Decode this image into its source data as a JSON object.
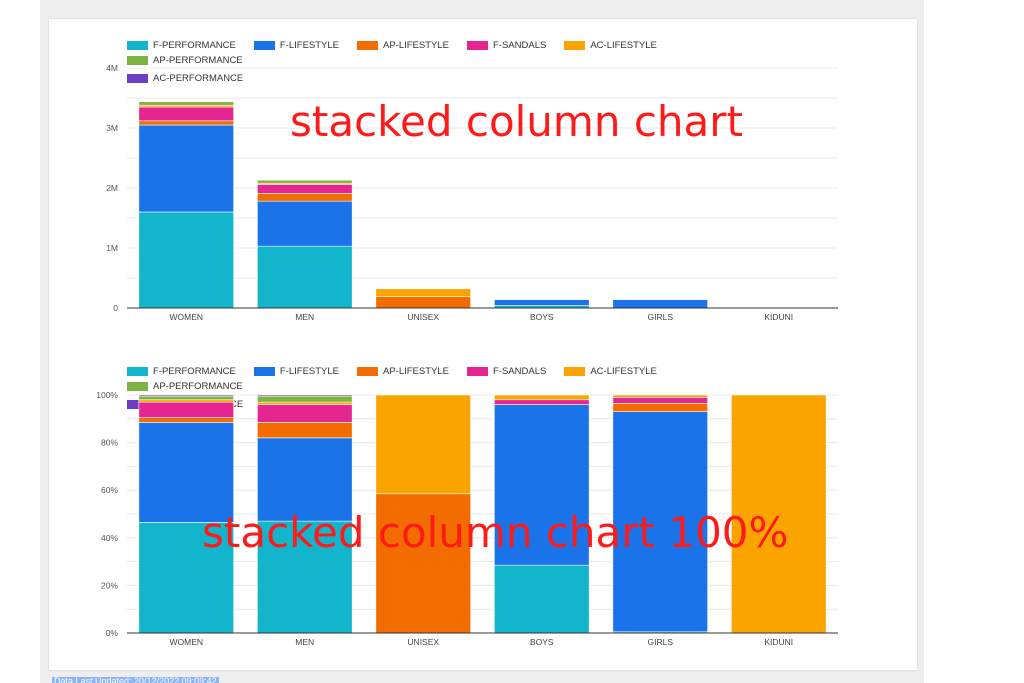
{
  "colors": {
    "F-PERFORMANCE": "#12b5cb",
    "F-LIFESTYLE": "#1a73e8",
    "AP-LIFESTYLE": "#f36c00",
    "F-SANDALS": "#e52592",
    "AC-LIFESTYLE": "#fba400",
    "AP-PERFORMANCE": "#7cb342",
    "AC-PERFORMANCE": "#6a3fc6"
  },
  "legend_labels": [
    "F-PERFORMANCE",
    "F-LIFESTYLE",
    "AP-LIFESTYLE",
    "F-SANDALS",
    "AC-LIFESTYLE",
    "AP-PERFORMANCE",
    "AC-PERFORMANCE"
  ],
  "annotations": {
    "top": "stacked column chart",
    "bottom": "stacked column chart 100%"
  },
  "status_text": "Data Last Updated: 20/12/2022 09:09:42",
  "chart_data": [
    {
      "type": "bar",
      "stacked": true,
      "categories": [
        "WOMEN",
        "MEN",
        "UNISEX",
        "BOYS",
        "GIRLS",
        "KIDUNI"
      ],
      "ylim": [
        0,
        4000000
      ],
      "yticks": [
        0,
        1000000,
        2000000,
        3000000,
        4000000
      ],
      "ytick_labels": [
        "0",
        "1M",
        "2M",
        "3M",
        "4M"
      ],
      "grid": true,
      "legend": "top",
      "series": [
        {
          "name": "F-PERFORMANCE",
          "values": [
            1600000,
            1030000,
            0,
            40000,
            0,
            0
          ]
        },
        {
          "name": "F-LIFESTYLE",
          "values": [
            1450000,
            750000,
            0,
            100000,
            140000,
            0
          ]
        },
        {
          "name": "AP-LIFESTYLE",
          "values": [
            70000,
            130000,
            190000,
            0,
            0,
            0
          ]
        },
        {
          "name": "F-SANDALS",
          "values": [
            230000,
            150000,
            0,
            10000,
            5000,
            0
          ]
        },
        {
          "name": "AC-LIFESTYLE",
          "values": [
            30000,
            20000,
            130000,
            3000,
            0,
            5000
          ]
        },
        {
          "name": "AP-PERFORMANCE",
          "values": [
            60000,
            50000,
            0,
            0,
            0,
            0
          ]
        },
        {
          "name": "AC-PERFORMANCE",
          "values": [
            10000,
            10000,
            0,
            0,
            0,
            0
          ]
        }
      ]
    },
    {
      "type": "bar",
      "stacked": true,
      "percent": true,
      "categories": [
        "WOMEN",
        "MEN",
        "UNISEX",
        "BOYS",
        "GIRLS",
        "KIDUNI"
      ],
      "ylim": [
        0,
        100
      ],
      "yticks": [
        0,
        20,
        40,
        60,
        80,
        100
      ],
      "ytick_labels": [
        "0%",
        "20%",
        "40%",
        "60%",
        "80%",
        "100%"
      ],
      "grid": true,
      "legend": "top",
      "series": [
        {
          "name": "F-PERFORMANCE",
          "values": [
            46.5,
            47.0,
            0,
            28.5,
            0.5,
            0
          ]
        },
        {
          "name": "F-LIFESTYLE",
          "values": [
            42.0,
            35.0,
            0,
            67.5,
            92.5,
            0
          ]
        },
        {
          "name": "AP-LIFESTYLE",
          "values": [
            2.0,
            6.5,
            58.5,
            0,
            3.5,
            0
          ]
        },
        {
          "name": "F-SANDALS",
          "values": [
            6.5,
            7.5,
            0,
            2.0,
            2.5,
            0
          ]
        },
        {
          "name": "AC-LIFESTYLE",
          "values": [
            1.0,
            1.0,
            41.5,
            2.0,
            1.0,
            100
          ]
        },
        {
          "name": "AP-PERFORMANCE",
          "values": [
            1.5,
            2.5,
            0,
            0,
            0,
            0
          ]
        },
        {
          "name": "AC-PERFORMANCE",
          "values": [
            0.5,
            0.5,
            0,
            0,
            0,
            0
          ]
        }
      ]
    }
  ]
}
